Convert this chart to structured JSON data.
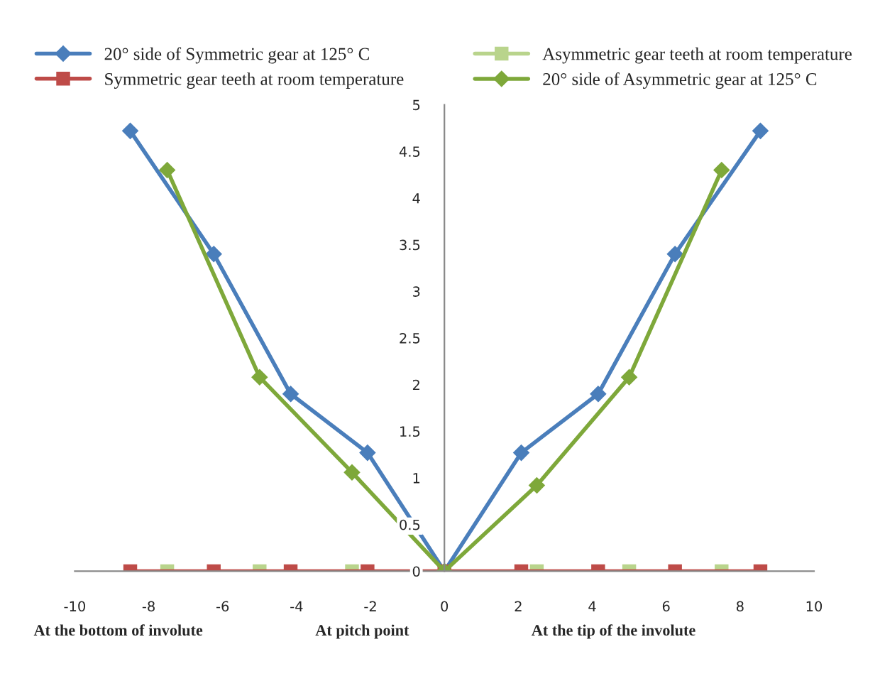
{
  "chart_data": {
    "type": "line",
    "xlim": [
      -10,
      10
    ],
    "xticks": [
      -10,
      -8,
      -6,
      -4,
      -2,
      0,
      2,
      4,
      6,
      8,
      10
    ],
    "ylim": [
      0,
      5
    ],
    "yticks": [
      0,
      0.5,
      1,
      1.5,
      2,
      2.5,
      3,
      3.5,
      4,
      4.5,
      5
    ],
    "grid": false,
    "legend": "top",
    "series": [
      {
        "name": "20° side of Symmetric gear at 125° C",
        "color": "#4a7ebb",
        "marker": "diamond",
        "x": [
          -8.5,
          -6.24,
          -4.16,
          -2.08,
          0,
          2.08,
          4.16,
          6.24,
          8.55
        ],
        "values": [
          4.72,
          3.4,
          1.9,
          1.27,
          0,
          1.27,
          1.9,
          3.4,
          4.72
        ]
      },
      {
        "name": "Asymmetric gear teeth at room temperature",
        "color": "#b9d48c",
        "marker": "square",
        "type": "scatter",
        "x": [
          -7.5,
          -5.0,
          -2.5,
          0,
          2.5,
          5.0,
          7.5
        ],
        "values": [
          0,
          0,
          0,
          null,
          0,
          0,
          0
        ]
      },
      {
        "name": "Symmetric gear teeth at room temperature",
        "color": "#be4b48",
        "marker": "square",
        "x": [
          -8.5,
          -6.24,
          -4.16,
          -2.08,
          0,
          2.08,
          4.16,
          6.24,
          8.55
        ],
        "values": [
          0,
          0,
          0,
          0,
          0,
          0,
          0,
          0,
          0
        ]
      },
      {
        "name": "20° side of Asymmetric gear at 125° C",
        "color": "#7ea83a",
        "marker": "diamond",
        "x": [
          -7.5,
          -5.0,
          -2.5,
          0,
          2.5,
          5.0,
          7.5
        ],
        "values": [
          4.3,
          2.08,
          1.06,
          0,
          0.92,
          2.08,
          4.3
        ]
      }
    ],
    "annotations": [
      "At the bottom of involute",
      "At pitch point",
      "At the tip of the involute"
    ]
  }
}
